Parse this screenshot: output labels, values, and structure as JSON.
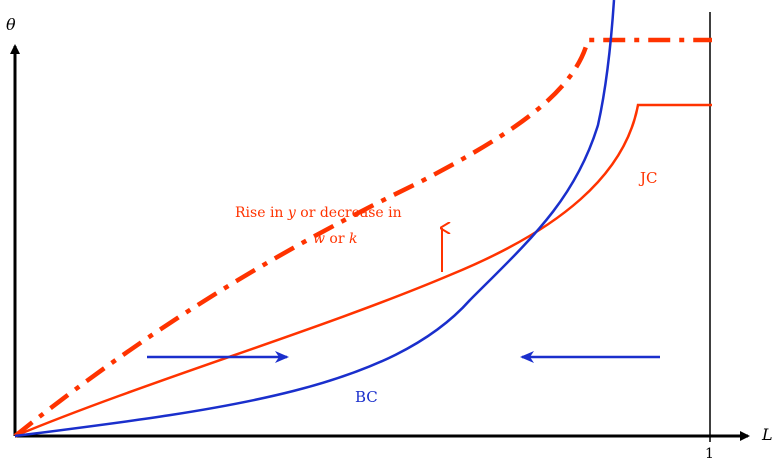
{
  "axes": {
    "y_label": "θ",
    "x_label": "L",
    "x_tick_label": "1"
  },
  "curves": {
    "bc": {
      "label": "BC",
      "color": "#1a2fcc"
    },
    "jc": {
      "label": "JC",
      "color": "#ff3300"
    },
    "jc_shifted": {
      "color": "#ff3300",
      "style": "dash-dot"
    }
  },
  "annotation": {
    "line1_prefix": "Rise in ",
    "line1_var": "y",
    "line1_suffix": " or decrease in",
    "line2_var_w": "w",
    "line2_mid": " or ",
    "line2_var_k": "k"
  },
  "arrows": {
    "dynamics_color": "#1a2fcc",
    "left_direction": "right",
    "right_direction": "left",
    "shift_direction": "up"
  },
  "colors": {
    "axis": "#000000",
    "red": "#ff3300",
    "blue": "#1a2fcc"
  }
}
